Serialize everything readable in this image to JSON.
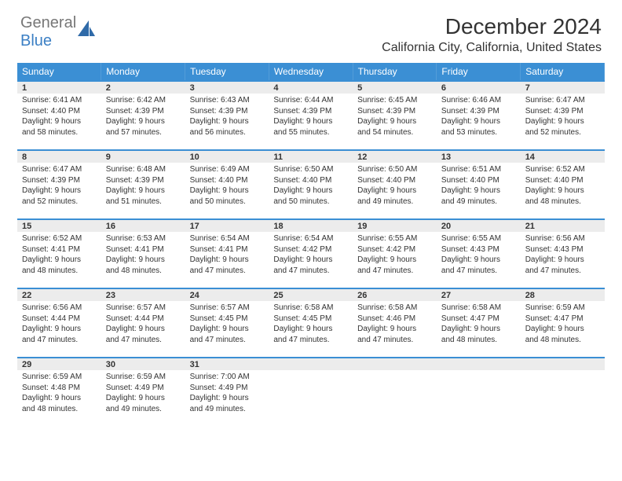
{
  "logo": {
    "text1": "General",
    "text2": "Blue"
  },
  "title": "December 2024",
  "location": "California City, California, United States",
  "colors": {
    "header_bg": "#3b8fd4",
    "row_accent": "#3b8fd4",
    "daynum_bg": "#ececec",
    "text": "#333333",
    "logo_gray": "#777777",
    "logo_blue": "#3b7fc4",
    "page_bg": "#ffffff"
  },
  "typography": {
    "title_fontsize": 28,
    "location_fontsize": 16,
    "dow_fontsize": 12,
    "daynum_fontsize": 11,
    "cell_fontsize": 10
  },
  "dow": [
    "Sunday",
    "Monday",
    "Tuesday",
    "Wednesday",
    "Thursday",
    "Friday",
    "Saturday"
  ],
  "weeks": [
    [
      {
        "n": "1",
        "sr": "Sunrise: 6:41 AM",
        "ss": "Sunset: 4:40 PM",
        "d1": "Daylight: 9 hours",
        "d2": "and 58 minutes."
      },
      {
        "n": "2",
        "sr": "Sunrise: 6:42 AM",
        "ss": "Sunset: 4:39 PM",
        "d1": "Daylight: 9 hours",
        "d2": "and 57 minutes."
      },
      {
        "n": "3",
        "sr": "Sunrise: 6:43 AM",
        "ss": "Sunset: 4:39 PM",
        "d1": "Daylight: 9 hours",
        "d2": "and 56 minutes."
      },
      {
        "n": "4",
        "sr": "Sunrise: 6:44 AM",
        "ss": "Sunset: 4:39 PM",
        "d1": "Daylight: 9 hours",
        "d2": "and 55 minutes."
      },
      {
        "n": "5",
        "sr": "Sunrise: 6:45 AM",
        "ss": "Sunset: 4:39 PM",
        "d1": "Daylight: 9 hours",
        "d2": "and 54 minutes."
      },
      {
        "n": "6",
        "sr": "Sunrise: 6:46 AM",
        "ss": "Sunset: 4:39 PM",
        "d1": "Daylight: 9 hours",
        "d2": "and 53 minutes."
      },
      {
        "n": "7",
        "sr": "Sunrise: 6:47 AM",
        "ss": "Sunset: 4:39 PM",
        "d1": "Daylight: 9 hours",
        "d2": "and 52 minutes."
      }
    ],
    [
      {
        "n": "8",
        "sr": "Sunrise: 6:47 AM",
        "ss": "Sunset: 4:39 PM",
        "d1": "Daylight: 9 hours",
        "d2": "and 52 minutes."
      },
      {
        "n": "9",
        "sr": "Sunrise: 6:48 AM",
        "ss": "Sunset: 4:39 PM",
        "d1": "Daylight: 9 hours",
        "d2": "and 51 minutes."
      },
      {
        "n": "10",
        "sr": "Sunrise: 6:49 AM",
        "ss": "Sunset: 4:40 PM",
        "d1": "Daylight: 9 hours",
        "d2": "and 50 minutes."
      },
      {
        "n": "11",
        "sr": "Sunrise: 6:50 AM",
        "ss": "Sunset: 4:40 PM",
        "d1": "Daylight: 9 hours",
        "d2": "and 50 minutes."
      },
      {
        "n": "12",
        "sr": "Sunrise: 6:50 AM",
        "ss": "Sunset: 4:40 PM",
        "d1": "Daylight: 9 hours",
        "d2": "and 49 minutes."
      },
      {
        "n": "13",
        "sr": "Sunrise: 6:51 AM",
        "ss": "Sunset: 4:40 PM",
        "d1": "Daylight: 9 hours",
        "d2": "and 49 minutes."
      },
      {
        "n": "14",
        "sr": "Sunrise: 6:52 AM",
        "ss": "Sunset: 4:40 PM",
        "d1": "Daylight: 9 hours",
        "d2": "and 48 minutes."
      }
    ],
    [
      {
        "n": "15",
        "sr": "Sunrise: 6:52 AM",
        "ss": "Sunset: 4:41 PM",
        "d1": "Daylight: 9 hours",
        "d2": "and 48 minutes."
      },
      {
        "n": "16",
        "sr": "Sunrise: 6:53 AM",
        "ss": "Sunset: 4:41 PM",
        "d1": "Daylight: 9 hours",
        "d2": "and 48 minutes."
      },
      {
        "n": "17",
        "sr": "Sunrise: 6:54 AM",
        "ss": "Sunset: 4:41 PM",
        "d1": "Daylight: 9 hours",
        "d2": "and 47 minutes."
      },
      {
        "n": "18",
        "sr": "Sunrise: 6:54 AM",
        "ss": "Sunset: 4:42 PM",
        "d1": "Daylight: 9 hours",
        "d2": "and 47 minutes."
      },
      {
        "n": "19",
        "sr": "Sunrise: 6:55 AM",
        "ss": "Sunset: 4:42 PM",
        "d1": "Daylight: 9 hours",
        "d2": "and 47 minutes."
      },
      {
        "n": "20",
        "sr": "Sunrise: 6:55 AM",
        "ss": "Sunset: 4:43 PM",
        "d1": "Daylight: 9 hours",
        "d2": "and 47 minutes."
      },
      {
        "n": "21",
        "sr": "Sunrise: 6:56 AM",
        "ss": "Sunset: 4:43 PM",
        "d1": "Daylight: 9 hours",
        "d2": "and 47 minutes."
      }
    ],
    [
      {
        "n": "22",
        "sr": "Sunrise: 6:56 AM",
        "ss": "Sunset: 4:44 PM",
        "d1": "Daylight: 9 hours",
        "d2": "and 47 minutes."
      },
      {
        "n": "23",
        "sr": "Sunrise: 6:57 AM",
        "ss": "Sunset: 4:44 PM",
        "d1": "Daylight: 9 hours",
        "d2": "and 47 minutes."
      },
      {
        "n": "24",
        "sr": "Sunrise: 6:57 AM",
        "ss": "Sunset: 4:45 PM",
        "d1": "Daylight: 9 hours",
        "d2": "and 47 minutes."
      },
      {
        "n": "25",
        "sr": "Sunrise: 6:58 AM",
        "ss": "Sunset: 4:45 PM",
        "d1": "Daylight: 9 hours",
        "d2": "and 47 minutes."
      },
      {
        "n": "26",
        "sr": "Sunrise: 6:58 AM",
        "ss": "Sunset: 4:46 PM",
        "d1": "Daylight: 9 hours",
        "d2": "and 47 minutes."
      },
      {
        "n": "27",
        "sr": "Sunrise: 6:58 AM",
        "ss": "Sunset: 4:47 PM",
        "d1": "Daylight: 9 hours",
        "d2": "and 48 minutes."
      },
      {
        "n": "28",
        "sr": "Sunrise: 6:59 AM",
        "ss": "Sunset: 4:47 PM",
        "d1": "Daylight: 9 hours",
        "d2": "and 48 minutes."
      }
    ],
    [
      {
        "n": "29",
        "sr": "Sunrise: 6:59 AM",
        "ss": "Sunset: 4:48 PM",
        "d1": "Daylight: 9 hours",
        "d2": "and 48 minutes."
      },
      {
        "n": "30",
        "sr": "Sunrise: 6:59 AM",
        "ss": "Sunset: 4:49 PM",
        "d1": "Daylight: 9 hours",
        "d2": "and 49 minutes."
      },
      {
        "n": "31",
        "sr": "Sunrise: 7:00 AM",
        "ss": "Sunset: 4:49 PM",
        "d1": "Daylight: 9 hours",
        "d2": "and 49 minutes."
      },
      null,
      null,
      null,
      null
    ]
  ]
}
